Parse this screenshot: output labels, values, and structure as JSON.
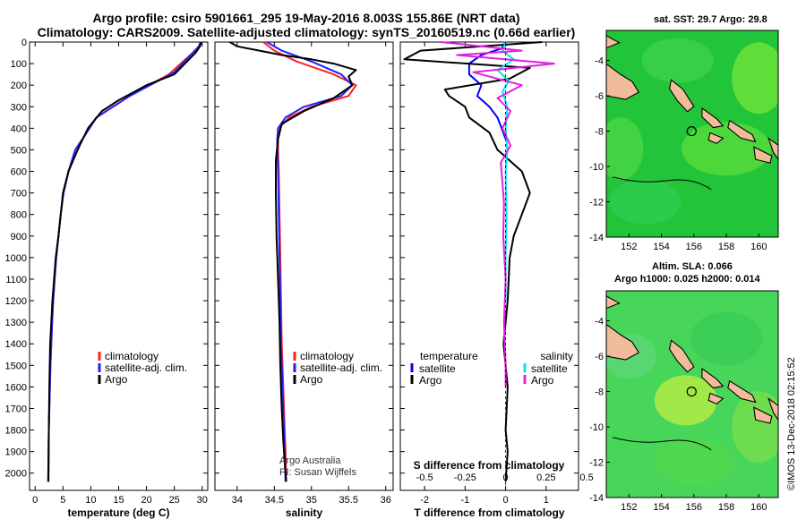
{
  "header": {
    "title_line1": "Argo profile: csiro 5901661_295 19-May-2016 8.003S 155.86E (NRT data)",
    "title_line2": "Climatology: CARS2009. Satellite-adjusted climatology: synTS_20160519.nc (0.66d earlier)"
  },
  "colors": {
    "climatology": "#ff2020",
    "satellite": "#2020ff",
    "argo": "#000000",
    "t_sat": "#0000ff",
    "s_sat": "#00e5ee",
    "s_argo": "#e020e0"
  },
  "chart_data": [
    {
      "id": "temperature",
      "type": "line",
      "xlabel": "temperature (deg C)",
      "ylabel": "",
      "xlim": [
        -1,
        31
      ],
      "ylim": [
        2080,
        0
      ],
      "xticks": [
        0,
        5,
        10,
        15,
        20,
        25,
        30
      ],
      "yticks": [
        0,
        100,
        200,
        300,
        400,
        500,
        600,
        700,
        800,
        900,
        1000,
        1100,
        1200,
        1300,
        1400,
        1500,
        1600,
        1700,
        1800,
        1900,
        2000
      ],
      "legend": [
        "climatology",
        "satellite-adj. clim.",
        "Argo"
      ],
      "series": [
        {
          "name": "climatology",
          "color": "#ff2020",
          "x": [
            29.9,
            29.5,
            28.3,
            24,
            17,
            11,
            8.5,
            7.2,
            6,
            5.1,
            4.6,
            4.2,
            3.8,
            3.5,
            3.25,
            3.05,
            2.9,
            2.75,
            2.65,
            2.55,
            2.45,
            2.4
          ],
          "y": [
            0,
            20,
            50,
            150,
            250,
            350,
            450,
            500,
            600,
            700,
            800,
            900,
            1000,
            1100,
            1200,
            1300,
            1400,
            1500,
            1600,
            1700,
            1800,
            2040
          ]
        },
        {
          "name": "satellite-adj. clim.",
          "color": "#2020ff",
          "x": [
            29.7,
            29.4,
            28.3,
            25,
            17,
            11,
            8.5,
            7.2,
            6,
            5.1,
            4.6,
            4.2,
            3.8,
            3.5,
            3.25,
            3.05,
            2.9,
            2.75,
            2.65,
            2.55,
            2.45,
            2.4
          ],
          "y": [
            0,
            20,
            50,
            140,
            250,
            350,
            450,
            500,
            600,
            700,
            800,
            900,
            1000,
            1100,
            1200,
            1300,
            1400,
            1500,
            1600,
            1700,
            1800,
            2040
          ]
        },
        {
          "name": "Argo",
          "color": "#000000",
          "x": [
            29.8,
            29.6,
            28.8,
            25,
            20,
            15,
            12,
            9.5,
            8,
            7.3,
            6,
            5,
            4.6,
            4.2,
            3.7,
            3.4,
            3.1,
            2.9,
            2.7,
            2.55,
            2.45,
            2.35
          ],
          "y": [
            0,
            20,
            50,
            150,
            200,
            270,
            320,
            400,
            480,
            520,
            600,
            700,
            800,
            900,
            1000,
            1100,
            1200,
            1300,
            1400,
            1600,
            1800,
            2040
          ]
        }
      ]
    },
    {
      "id": "salinity",
      "type": "line",
      "xlabel": "salinity",
      "ylabel": "",
      "xlim": [
        33.7,
        36.1
      ],
      "ylim": [
        2080,
        0
      ],
      "xticks": [
        34,
        34.5,
        35,
        35.5,
        36
      ],
      "legend": [
        "climatology",
        "satellite-adj. clim.",
        "Argo"
      ],
      "annotation_line1": "Argo Australia",
      "annotation_line2": "PI: Susan Wijffels",
      "series": [
        {
          "name": "climatology",
          "color": "#ff2020",
          "x": [
            34.35,
            34.5,
            34.8,
            35.3,
            35.6,
            35.5,
            35,
            34.7,
            34.56,
            34.55,
            34.55,
            34.56,
            34.57,
            34.58,
            34.59,
            34.6,
            34.61,
            34.62,
            34.63,
            34.64,
            34.65,
            34.66
          ],
          "y": [
            0,
            40,
            90,
            150,
            200,
            250,
            300,
            350,
            400,
            450,
            500,
            600,
            800,
            1000,
            1200,
            1400,
            1500,
            1600,
            1700,
            1800,
            1900,
            2040
          ]
        },
        {
          "name": "satellite-adj. clim.",
          "color": "#2020ff",
          "x": [
            34.4,
            34.6,
            35.0,
            35.4,
            35.55,
            35.4,
            34.9,
            34.65,
            34.55,
            34.54,
            34.54,
            34.55,
            34.56,
            34.57,
            34.58,
            34.59,
            34.6,
            34.61,
            34.62,
            34.63,
            34.64,
            34.65
          ],
          "y": [
            0,
            40,
            90,
            150,
            200,
            250,
            300,
            350,
            400,
            450,
            500,
            600,
            800,
            1000,
            1200,
            1400,
            1500,
            1600,
            1700,
            1800,
            1900,
            2040
          ]
        },
        {
          "name": "Argo",
          "color": "#000000",
          "x": [
            33.9,
            34.0,
            34.3,
            34.6,
            35.0,
            35.3,
            35.6,
            35.5,
            35.55,
            35.3,
            34.9,
            34.6,
            34.55,
            34.52,
            34.52,
            34.53,
            34.55,
            34.57,
            34.58,
            34.6,
            34.62,
            34.64,
            34.66
          ],
          "y": [
            0,
            20,
            40,
            60,
            80,
            100,
            130,
            160,
            200,
            260,
            320,
            380,
            450,
            550,
            700,
            900,
            1100,
            1300,
            1500,
            1700,
            1850,
            1950,
            2040
          ]
        }
      ]
    },
    {
      "id": "difference",
      "type": "line",
      "xlabel": "T difference from climatology",
      "x2label": "S difference from climatology",
      "xlim": [
        -2.6,
        1.8
      ],
      "x2lim": [
        -0.65,
        0.45
      ],
      "ylim": [
        2080,
        0
      ],
      "xticks": [
        -2,
        -1,
        0,
        1
      ],
      "x2ticks": [
        -0.5,
        -0.25,
        0,
        0.25,
        0.5
      ],
      "x2ticklabels": [
        "-0.5",
        "-0.25",
        "0",
        "0.25",
        "0.5"
      ],
      "legend_left_title": "temperature",
      "legend_right_title": "salinity",
      "legend": [
        "satellite",
        "Argo",
        "satellite",
        "Argo"
      ],
      "series": [
        {
          "name": "T satellite",
          "axis": "T",
          "color": "#0000ff",
          "x": [
            0,
            -0.1,
            -0.6,
            -0.9,
            -0.9,
            -0.6,
            -0.7,
            -0.4,
            -0.2,
            -0.1,
            0
          ],
          "y": [
            0,
            30,
            60,
            100,
            150,
            200,
            250,
            300,
            350,
            400,
            450
          ]
        },
        {
          "name": "T Argo",
          "axis": "T",
          "color": "#000000",
          "x": [
            0.9,
            -2.1,
            -2.5,
            0.6,
            0.1,
            -1.5,
            -1.4,
            -1.0,
            -0.9,
            -0.4,
            -0.2,
            0.4,
            0.6,
            0.4,
            0.2,
            0.1,
            0.05,
            -0.05,
            0.05,
            0,
            0.05,
            0
          ],
          "y": [
            0,
            40,
            80,
            120,
            170,
            220,
            250,
            300,
            350,
            420,
            500,
            600,
            700,
            800,
            900,
            1000,
            1200,
            1400,
            1600,
            1800,
            1900,
            2040
          ]
        },
        {
          "name": "S satellite",
          "axis": "S",
          "color": "#00e5ee",
          "x": [
            0,
            -0.02,
            0.05,
            -0.05,
            0.02,
            -0.02,
            0.01,
            0,
            0.01,
            0,
            0.005,
            0,
            0
          ],
          "y": [
            0,
            40,
            80,
            130,
            180,
            230,
            300,
            400,
            500,
            600,
            800,
            1000,
            1200
          ]
        },
        {
          "name": "S Argo",
          "axis": "S",
          "color": "#e020e0",
          "x": [
            -0.4,
            0.1,
            -0.3,
            0.3,
            -0.2,
            0.1,
            -0.05,
            0.03,
            -0.02,
            0.03,
            -0.03,
            -0.02,
            -0.01,
            -0.015,
            0,
            -0.01,
            0,
            0
          ],
          "y": [
            0,
            40,
            60,
            100,
            140,
            200,
            260,
            320,
            400,
            480,
            560,
            650,
            750,
            900,
            1100,
            1300,
            1500,
            1600
          ]
        }
      ]
    },
    {
      "id": "sst_map",
      "type": "heatmap",
      "title": "sat. SST: 29.7 Argo: 29.8",
      "xlim": [
        150.6,
        161.2
      ],
      "ylim": [
        -14,
        -2.3
      ],
      "xticks": [
        152,
        154,
        156,
        158,
        160
      ],
      "yticks": [
        -4,
        -6,
        -8,
        -10,
        -12,
        -14
      ],
      "marker": {
        "lon": 155.86,
        "lat": -8.003
      }
    },
    {
      "id": "sla_map",
      "type": "heatmap",
      "title_line1": "Altim. SLA: 0.066",
      "title_line2": "Argo h1000: 0.025 h2000: 0.014",
      "xlim": [
        150.6,
        161.2
      ],
      "ylim": [
        -14,
        -2.3
      ],
      "xticks": [
        152,
        154,
        156,
        158,
        160
      ],
      "yticks": [
        -4,
        -6,
        -8,
        -10,
        -12,
        -14
      ],
      "marker": {
        "lon": 155.86,
        "lat": -8.003
      }
    }
  ],
  "footer": {
    "credit": "©IMOS 13-Dec-2018 02:15:52"
  }
}
